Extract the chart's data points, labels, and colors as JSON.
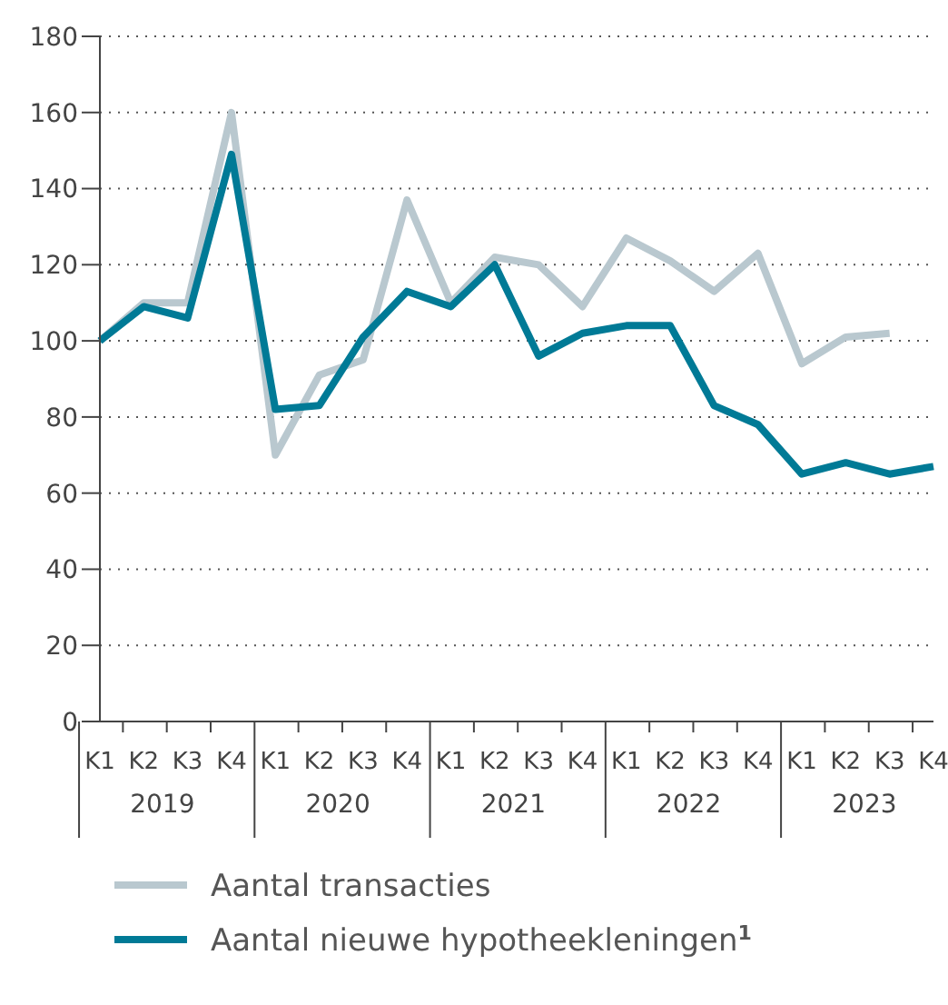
{
  "chart_data": {
    "type": "line",
    "categories": [
      "K1",
      "K2",
      "K3",
      "K4",
      "K1",
      "K2",
      "K3",
      "K4",
      "K1",
      "K2",
      "K3",
      "K4",
      "K1",
      "K2",
      "K3",
      "K4",
      "K1",
      "K2",
      "K3",
      "K4"
    ],
    "series": [
      {
        "name": "Aantal transacties",
        "color": "#b9c8cf",
        "values": [
          100,
          110,
          110,
          160,
          70,
          91,
          95,
          137,
          110,
          122,
          120,
          109,
          127,
          121,
          113,
          123,
          94,
          101,
          102,
          null
        ]
      },
      {
        "name": "Aantal nieuwe hypotheekleningen$^{1}$",
        "color": "#007a96",
        "values": [
          100,
          109,
          106,
          149,
          82,
          83,
          101,
          113,
          109,
          120,
          96,
          102,
          104,
          104,
          83,
          78,
          65,
          68,
          65,
          67
        ]
      }
    ],
    "annotations": [
      "2019",
      "2020",
      "2021",
      "2022",
      "2023"
    ],
    "ylim": [
      0,
      180
    ],
    "yticks": [
      0,
      20,
      40,
      60,
      80,
      100,
      120,
      140,
      160,
      180
    ],
    "grid": "y",
    "legend": "bottom",
    "marker": "none",
    "line_style": "solid"
  }
}
